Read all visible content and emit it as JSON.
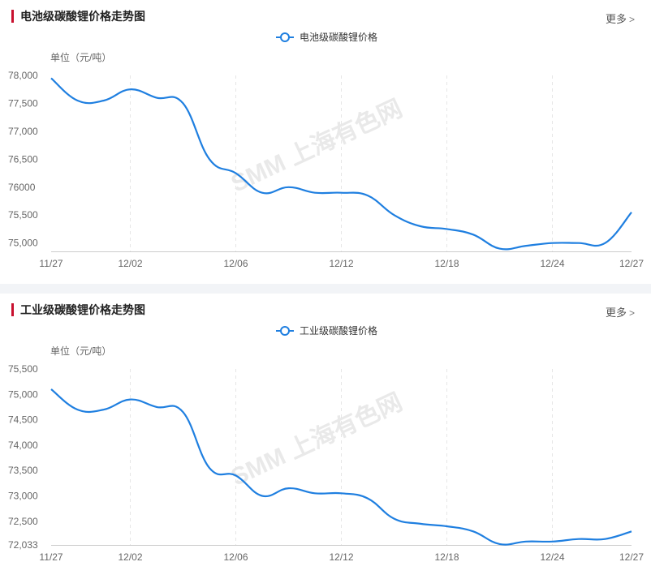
{
  "panels": [
    {
      "title": "电池级碳酸锂价格走势图",
      "more_label": "更多",
      "legend_label": "电池级碳酸锂价格",
      "unit_label": "单位（元/吨）",
      "watermark": "SMM 上海有色网"
    },
    {
      "title": "工业级碳酸锂价格走势图",
      "more_label": "更多",
      "legend_label": "工业级碳酸锂价格",
      "unit_label": "单位（元/吨）",
      "watermark": "SMM 上海有色网"
    }
  ],
  "colors": {
    "line": "#1f7fe0",
    "accent": "#c8102e",
    "grid": "#e6e6e6"
  },
  "chart_data": [
    {
      "type": "line",
      "title": "电池级碳酸锂价格走势图",
      "ylabel": "单位（元/吨）",
      "ylim": [
        74850,
        78000
      ],
      "y_ticks": [
        75000,
        75500,
        76000,
        76500,
        77000,
        77500,
        78000
      ],
      "y_tick_labels": [
        "75,000",
        "75,500",
        "76000",
        "76,500",
        "77,000",
        "77,500",
        "78,000"
      ],
      "x_tick_labels": [
        "11/27",
        "12/02",
        "12/06",
        "12/12",
        "12/18",
        "12/24",
        "12/27"
      ],
      "x": [
        "11/27",
        "11/28",
        "11/29",
        "12/02",
        "12/03",
        "12/04",
        "12/05",
        "12/06",
        "12/09",
        "12/10",
        "12/11",
        "12/12",
        "12/13",
        "12/16",
        "12/17",
        "12/18",
        "12/19",
        "12/20",
        "12/23",
        "12/24",
        "12/25",
        "12/26",
        "12/27"
      ],
      "series": [
        {
          "name": "电池级碳酸锂价格",
          "values": [
            77950,
            77550,
            77550,
            77750,
            77600,
            77500,
            76500,
            76250,
            75900,
            76000,
            75900,
            75900,
            75850,
            75500,
            75300,
            75250,
            75150,
            74900,
            74950,
            75000,
            75000,
            75000,
            75550
          ]
        }
      ],
      "grid": "vertical-dashed",
      "legend": "top-center"
    },
    {
      "type": "line",
      "title": "工业级碳酸锂价格走势图",
      "ylabel": "单位（元/吨）",
      "ylim": [
        72033,
        75500
      ],
      "y_ticks": [
        72033,
        72500,
        73000,
        73500,
        74000,
        74500,
        75000,
        75500
      ],
      "y_tick_labels": [
        "72,033",
        "72,500",
        "73,000",
        "73,500",
        "74,000",
        "74,500",
        "75,000",
        "75,500"
      ],
      "x_tick_labels": [
        "11/27",
        "12/02",
        "12/06",
        "12/12",
        "12/18",
        "12/24",
        "12/27"
      ],
      "x": [
        "11/27",
        "11/28",
        "11/29",
        "12/02",
        "12/03",
        "12/04",
        "12/05",
        "12/06",
        "12/09",
        "12/10",
        "12/11",
        "12/12",
        "12/13",
        "12/16",
        "12/17",
        "12/18",
        "12/19",
        "12/20",
        "12/23",
        "12/24",
        "12/25",
        "12/26",
        "12/27"
      ],
      "series": [
        {
          "name": "工业级碳酸锂价格",
          "values": [
            75100,
            74700,
            74700,
            74900,
            74750,
            74650,
            73550,
            73400,
            73000,
            73150,
            73050,
            73050,
            72950,
            72550,
            72450,
            72400,
            72300,
            72050,
            72100,
            72100,
            72150,
            72150,
            72300
          ]
        }
      ],
      "grid": "vertical-dashed",
      "legend": "top-center"
    }
  ]
}
